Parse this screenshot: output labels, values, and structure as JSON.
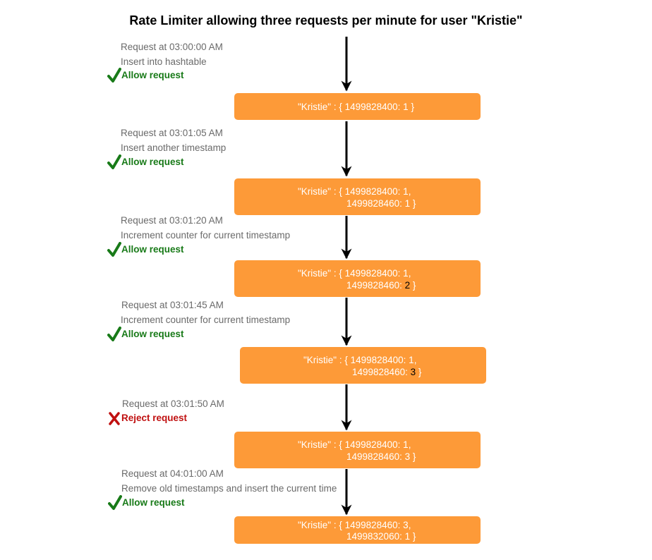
{
  "title": "Rate Limiter allowing three requests per minute for user \"Kristie\"",
  "colors": {
    "box": "#fd9a38",
    "allow": "#187a18",
    "reject": "#c01010",
    "note": "#6a6a6a"
  },
  "icons": {
    "allow": "check-icon",
    "reject": "cross-icon"
  },
  "steps": [
    {
      "request": "Request at 03:00:00 AM",
      "action": "Insert into hashtable",
      "verdict": "Allow request",
      "box": {
        "line1": "\"Kristie\" : { 1499828400: 1 }"
      }
    },
    {
      "request": "Request at 03:01:05 AM",
      "action": "Insert another timestamp",
      "verdict": "Allow request",
      "box": {
        "line1": "\"Kristie\" : { 1499828400: 1,",
        "line2_key": "1499828460: ",
        "line2_val": "1",
        "line2_end": " }"
      }
    },
    {
      "request": "Request at 03:01:20 AM",
      "action": "Increment counter for current timestamp",
      "verdict": "Allow request",
      "box": {
        "line1": "\"Kristie\" : { 1499828400: 1,",
        "line2_key": "1499828460: ",
        "line2_val": "2",
        "line2_end": " }"
      }
    },
    {
      "request": "Request at 03:01:45 AM",
      "action": "Increment counter for current timestamp",
      "verdict": "Allow request",
      "box": {
        "line1": "\"Kristie\" : { 1499828400: 1,",
        "line2_key": "1499828460: ",
        "line2_val": "3",
        "line2_end": " }"
      }
    },
    {
      "request": "Request at 03:01:50 AM",
      "verdict": "Reject request",
      "box": {
        "line1": "\"Kristie\" : { 1499828400: 1,",
        "line2_key": "1499828460: ",
        "line2_val": "3",
        "line2_end": " }"
      }
    },
    {
      "request": "Request at 04:01:00 AM",
      "action": "Remove old timestamps and insert the current time",
      "verdict": "Allow request",
      "box": {
        "line1": "\"Kristie\" : { 1499828460: 3,",
        "line2_key": "1499832060: ",
        "line2_val": "1",
        "line2_end": " }"
      }
    }
  ]
}
